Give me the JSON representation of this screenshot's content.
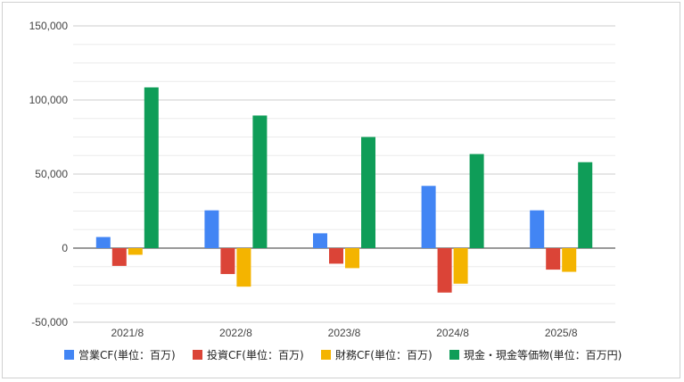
{
  "chart_data": {
    "type": "bar",
    "categories": [
      "2021/8",
      "2022/8",
      "2023/8",
      "2024/8",
      "2025/8"
    ],
    "series": [
      {
        "name": "営業CF(単位：百万)",
        "color": "#4285f4",
        "values": [
          7500,
          25500,
          10000,
          42000,
          25500
        ]
      },
      {
        "name": "投資CF(単位：百万)",
        "color": "#db4437",
        "values": [
          -12000,
          -17500,
          -10500,
          -30000,
          -14500
        ]
      },
      {
        "name": "財務CF(単位：百万)",
        "color": "#f4b400",
        "values": [
          -4500,
          -26000,
          -13500,
          -24000,
          -16000
        ]
      },
      {
        "name": "現金・現金等価物(単位：百万円)",
        "color": "#0f9d58",
        "values": [
          108500,
          89500,
          75000,
          63500,
          58000
        ]
      }
    ],
    "ylim": [
      -50000,
      150000
    ],
    "yticks": [
      "150,000",
      "100,000",
      "50,000",
      "0",
      "-50,000"
    ],
    "ytick_values": [
      150000,
      100000,
      50000,
      0,
      -50000
    ],
    "grid": true,
    "legend_position": "bottom"
  }
}
